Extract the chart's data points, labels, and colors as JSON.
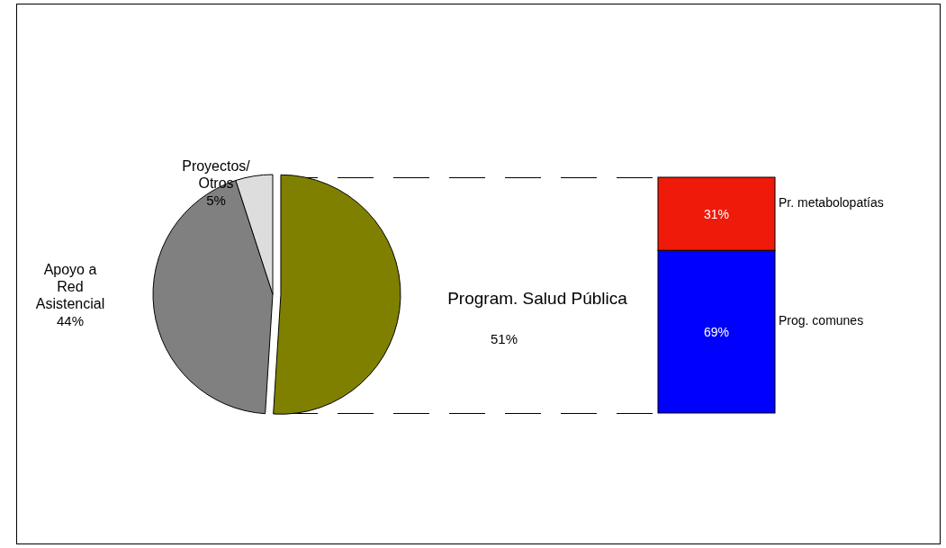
{
  "chart_data": [
    {
      "type": "pie",
      "categories": [
        "Program. Salud Pública",
        "Apoyo a\nRed\nAsistencial",
        "Proyectos/\nOtros"
      ],
      "values": [
        51,
        44,
        5
      ],
      "colors": [
        "#808000",
        "#808080",
        "#dddddd"
      ],
      "value_labels": [
        "51%",
        "44%",
        "5%"
      ]
    },
    {
      "type": "bar",
      "stacked": true,
      "categories": [
        null
      ],
      "ylim": [
        0,
        100
      ],
      "tick_labels": false,
      "series": [
        {
          "name": "Prog. comunes",
          "color": "#0000ff",
          "values": [
            69
          ],
          "value_labels": [
            "69%"
          ]
        },
        {
          "name": "Pr. metabolopatías",
          "color": "#f01a0a",
          "values": [
            31
          ],
          "value_labels": [
            "31%"
          ]
        }
      ]
    }
  ]
}
